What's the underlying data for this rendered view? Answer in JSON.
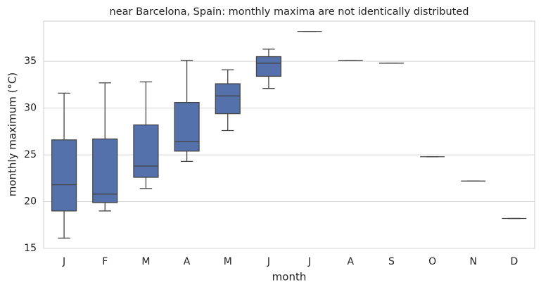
{
  "chart_data": {
    "type": "box",
    "title": "near Barcelona, Spain: monthly maxima are not identically distributed",
    "x_label": "month",
    "y_label": "monthly maximum (°C)",
    "categories": [
      "J",
      "F",
      "M",
      "A",
      "M",
      "J",
      "J",
      "A",
      "S",
      "O",
      "N",
      "D"
    ],
    "low": [
      16.1,
      19.0,
      21.4,
      24.3,
      27.6,
      32.1,
      38.2,
      35.1,
      34.8,
      24.8,
      22.2,
      18.2
    ],
    "q1": [
      19.0,
      19.9,
      22.6,
      25.4,
      29.4,
      33.4,
      38.2,
      35.1,
      34.8,
      24.8,
      22.2,
      18.2
    ],
    "median": [
      21.8,
      20.8,
      23.8,
      26.4,
      31.3,
      34.8,
      38.2,
      35.1,
      34.8,
      24.8,
      22.2,
      18.2
    ],
    "q3": [
      26.6,
      26.7,
      28.2,
      30.6,
      32.6,
      35.5,
      38.2,
      35.1,
      34.8,
      24.8,
      22.2,
      18.2
    ],
    "high": [
      31.6,
      32.7,
      32.8,
      35.1,
      34.1,
      36.3,
      38.2,
      35.1,
      34.8,
      24.8,
      22.2,
      18.2
    ],
    "color": "#5471ab",
    "ylim": [
      15,
      39.3
    ],
    "yticks": [
      15,
      20,
      25,
      30,
      35
    ],
    "grid": true
  }
}
